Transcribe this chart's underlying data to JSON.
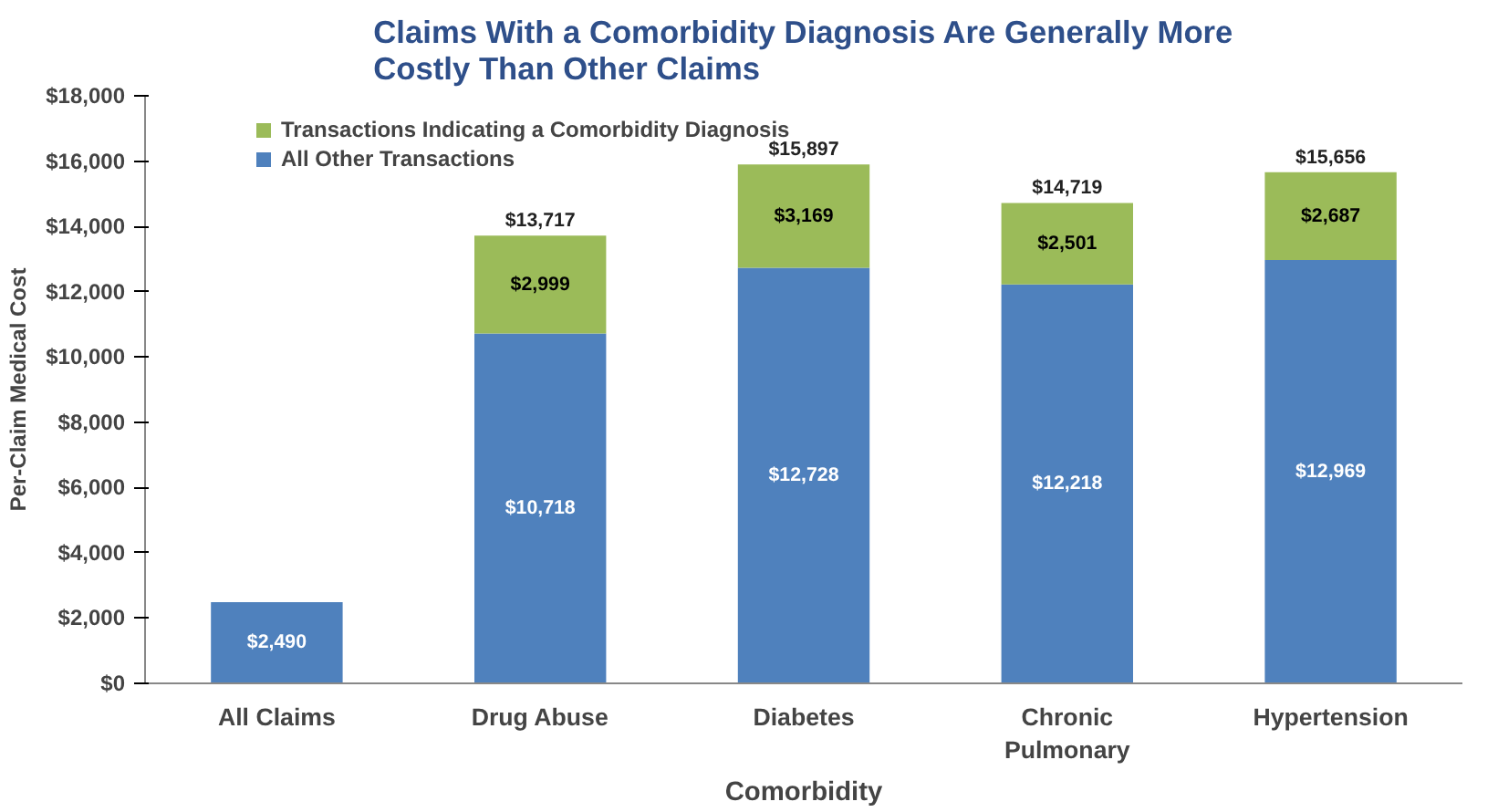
{
  "chart_data": {
    "type": "bar",
    "stacked": true,
    "title": "Claims With a Comorbidity Diagnosis Are Generally More\nCostly Than Other Claims",
    "xlabel": "Comorbidity",
    "ylabel": "Per-Claim Medical Cost",
    "categories": [
      "All Claims",
      "Drug Abuse",
      "Diabetes",
      "Chronic\nPulmonary",
      "Hypertension"
    ],
    "series": [
      {
        "name": "All Other Transactions",
        "color": "#4f81bd",
        "values": [
          2490,
          10718,
          12728,
          12218,
          12969
        ],
        "value_labels": [
          "$2,490",
          "$10,718",
          "$12,728",
          "$12,218",
          "$12,969"
        ]
      },
      {
        "name": "Transactions Indicating a Comorbidity Diagnosis",
        "color": "#9bbb59",
        "values": [
          null,
          2999,
          3169,
          2501,
          2687
        ],
        "value_labels": [
          null,
          "$2,999",
          "$3,169",
          "$2,501",
          "$2,687"
        ]
      }
    ],
    "totals": [
      null,
      "$13,717",
      "$15,897",
      "$14,719",
      "$15,656"
    ],
    "ylim": [
      0,
      18000
    ],
    "yticks": [
      {
        "value": 0,
        "label": "$0"
      },
      {
        "value": 2000,
        "label": "$2,000"
      },
      {
        "value": 4000,
        "label": "$4,000"
      },
      {
        "value": 6000,
        "label": "$6,000"
      },
      {
        "value": 8000,
        "label": "$8,000"
      },
      {
        "value": 10000,
        "label": "$10,000"
      },
      {
        "value": 12000,
        "label": "$12,000"
      },
      {
        "value": 14000,
        "label": "$14,000"
      },
      {
        "value": 16000,
        "label": "$16,000"
      },
      {
        "value": 18000,
        "label": "$18,000"
      }
    ],
    "grid": false,
    "legend": "top left"
  }
}
